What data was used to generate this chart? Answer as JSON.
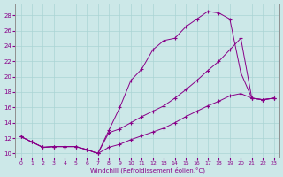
{
  "xlabel": "Windchill (Refroidissement éolien,°C)",
  "bg_color": "#cce8e8",
  "line_color": "#880088",
  "grid_color": "#aad4d4",
  "xlim_min": -0.5,
  "xlim_max": 23.5,
  "ylim_min": 9.5,
  "ylim_max": 29.5,
  "xticks": [
    0,
    1,
    2,
    3,
    4,
    5,
    6,
    7,
    8,
    9,
    10,
    11,
    12,
    13,
    14,
    15,
    16,
    17,
    18,
    19,
    20,
    21,
    22,
    23
  ],
  "yticks": [
    10,
    12,
    14,
    16,
    18,
    20,
    22,
    24,
    26,
    28
  ],
  "curve1_x": [
    0,
    1,
    2,
    3,
    4,
    5,
    6,
    7,
    8,
    9,
    10,
    11,
    12,
    13,
    14,
    15,
    16,
    17,
    18,
    19,
    20,
    21,
    22,
    23
  ],
  "curve1_y": [
    12.2,
    11.5,
    10.8,
    10.9,
    10.9,
    10.9,
    10.5,
    10.0,
    13.0,
    16.0,
    19.5,
    21.0,
    23.5,
    24.7,
    25.0,
    26.5,
    27.5,
    28.5,
    28.3,
    27.5,
    20.5,
    17.2,
    17.0,
    17.2
  ],
  "curve2_x": [
    0,
    1,
    2,
    3,
    4,
    5,
    6,
    7,
    8,
    9,
    10,
    11,
    12,
    13,
    14,
    15,
    16,
    17,
    18,
    19,
    20,
    21,
    22,
    23
  ],
  "curve2_y": [
    12.2,
    11.5,
    10.8,
    10.9,
    10.9,
    10.9,
    10.5,
    10.0,
    10.8,
    11.2,
    11.8,
    12.3,
    12.8,
    13.3,
    14.0,
    14.8,
    15.5,
    16.2,
    16.8,
    17.5,
    17.8,
    17.2,
    17.0,
    17.2
  ],
  "curve3_x": [
    0,
    1,
    2,
    3,
    4,
    5,
    6,
    7,
    8,
    9,
    10,
    11,
    12,
    13,
    14,
    15,
    16,
    17,
    18,
    19,
    20,
    21,
    22,
    23
  ],
  "curve3_y": [
    12.2,
    11.5,
    10.8,
    10.9,
    10.9,
    10.9,
    10.5,
    10.0,
    12.7,
    13.2,
    14.0,
    14.8,
    15.5,
    16.2,
    17.2,
    18.3,
    19.5,
    20.8,
    22.0,
    23.5,
    25.0,
    17.2,
    17.0,
    17.2
  ]
}
